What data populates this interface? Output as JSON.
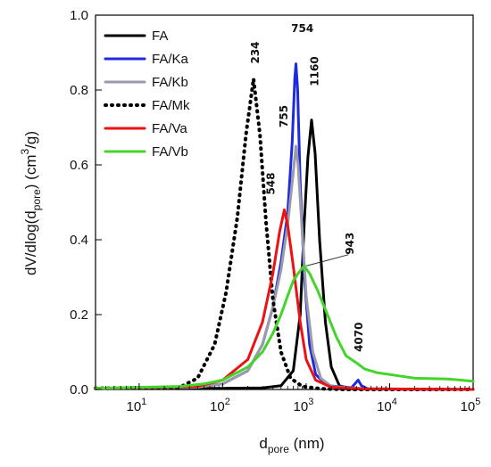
{
  "chart_data": {
    "type": "line",
    "x_scale": "log",
    "xlim": [
      3,
      100000
    ],
    "ylim": [
      0,
      1.0
    ],
    "grid": false,
    "legend_position": "top-left",
    "xlabel": {
      "main": "d",
      "sub": "pore",
      "rest": " (nm)"
    },
    "ylabel": {
      "p1": "dV/dlog(d",
      "sub": "pore",
      "p2": ") (cm",
      "sup": "3",
      "p3": "/g)"
    },
    "x_ticks": [
      {
        "value": 10,
        "base": "10",
        "exp": "1"
      },
      {
        "value": 100,
        "base": "10",
        "exp": "2"
      },
      {
        "value": 1000,
        "base": "10",
        "exp": "3"
      },
      {
        "value": 10000,
        "base": "10",
        "exp": "4"
      },
      {
        "value": 100000,
        "base": "10",
        "exp": "5"
      }
    ],
    "y_ticks": [
      {
        "value": 0,
        "label": "0.0"
      },
      {
        "value": 0.2,
        "label": "0.2"
      },
      {
        "value": 0.4,
        "label": "0.4"
      },
      {
        "value": 0.6,
        "label": "0.6"
      },
      {
        "value": 0.8,
        "label": "0.8"
      },
      {
        "value": 1.0,
        "label": "1.0"
      }
    ],
    "series": [
      {
        "name": "FA",
        "color": "#000000",
        "dash": "solid",
        "points": [
          [
            3,
            0.003
          ],
          [
            100,
            0.003
          ],
          [
            300,
            0.004
          ],
          [
            500,
            0.01
          ],
          [
            700,
            0.05
          ],
          [
            850,
            0.2
          ],
          [
            950,
            0.45
          ],
          [
            1050,
            0.62
          ],
          [
            1160,
            0.72
          ],
          [
            1280,
            0.63
          ],
          [
            1450,
            0.4
          ],
          [
            1700,
            0.18
          ],
          [
            2000,
            0.06
          ],
          [
            2500,
            0.01
          ],
          [
            3500,
            0.002
          ],
          [
            5000,
            0.001
          ],
          [
            100000,
            0.0
          ]
        ]
      },
      {
        "name": "FA/Ka",
        "color": "#1d2ae0",
        "dash": "solid",
        "points": [
          [
            3,
            0.003
          ],
          [
            50,
            0.006
          ],
          [
            100,
            0.015
          ],
          [
            200,
            0.05
          ],
          [
            300,
            0.12
          ],
          [
            400,
            0.22
          ],
          [
            500,
            0.34
          ],
          [
            600,
            0.47
          ],
          [
            680,
            0.66
          ],
          [
            730,
            0.83
          ],
          [
            754,
            0.87
          ],
          [
            790,
            0.8
          ],
          [
            850,
            0.55
          ],
          [
            950,
            0.3
          ],
          [
            1100,
            0.12
          ],
          [
            1300,
            0.04
          ],
          [
            1800,
            0.01
          ],
          [
            3500,
            0.005
          ],
          [
            4200,
            0.025
          ],
          [
            4600,
            0.01
          ],
          [
            5500,
            0.002
          ],
          [
            100000,
            0.0
          ]
        ]
      },
      {
        "name": "FA/Kb",
        "color": "#9a9aa8",
        "dash": "solid",
        "points": [
          [
            3,
            0.003
          ],
          [
            50,
            0.006
          ],
          [
            100,
            0.015
          ],
          [
            200,
            0.05
          ],
          [
            300,
            0.12
          ],
          [
            400,
            0.22
          ],
          [
            500,
            0.32
          ],
          [
            600,
            0.44
          ],
          [
            700,
            0.58
          ],
          [
            755,
            0.65
          ],
          [
            800,
            0.6
          ],
          [
            880,
            0.45
          ],
          [
            1000,
            0.25
          ],
          [
            1200,
            0.1
          ],
          [
            1500,
            0.03
          ],
          [
            2000,
            0.008
          ],
          [
            5000,
            0.002
          ],
          [
            100000,
            0.0
          ]
        ]
      },
      {
        "name": "FA/Mk",
        "color": "#000000",
        "dash": "dotted",
        "points": [
          [
            3,
            0.003
          ],
          [
            30,
            0.005
          ],
          [
            50,
            0.03
          ],
          [
            80,
            0.12
          ],
          [
            110,
            0.26
          ],
          [
            150,
            0.46
          ],
          [
            190,
            0.68
          ],
          [
            234,
            0.83
          ],
          [
            280,
            0.68
          ],
          [
            330,
            0.45
          ],
          [
            400,
            0.24
          ],
          [
            500,
            0.1
          ],
          [
            650,
            0.03
          ],
          [
            900,
            0.008
          ],
          [
            1500,
            0.002
          ],
          [
            3000,
            0.0
          ],
          [
            100000,
            0.0
          ]
        ]
      },
      {
        "name": "FA/Va",
        "color": "#ee1111",
        "dash": "solid",
        "points": [
          [
            3,
            0.003
          ],
          [
            50,
            0.008
          ],
          [
            100,
            0.025
          ],
          [
            200,
            0.08
          ],
          [
            300,
            0.18
          ],
          [
            400,
            0.31
          ],
          [
            480,
            0.42
          ],
          [
            548,
            0.48
          ],
          [
            600,
            0.44
          ],
          [
            700,
            0.33
          ],
          [
            850,
            0.18
          ],
          [
            1000,
            0.08
          ],
          [
            1300,
            0.025
          ],
          [
            2000,
            0.006
          ],
          [
            5000,
            0.002
          ],
          [
            100000,
            0.0
          ]
        ]
      },
      {
        "name": "FA/Vb",
        "color": "#44d52a",
        "dash": "solid",
        "points": [
          [
            3,
            0.003
          ],
          [
            30,
            0.008
          ],
          [
            60,
            0.015
          ],
          [
            100,
            0.025
          ],
          [
            200,
            0.06
          ],
          [
            300,
            0.1
          ],
          [
            400,
            0.15
          ],
          [
            500,
            0.2
          ],
          [
            600,
            0.25
          ],
          [
            700,
            0.29
          ],
          [
            800,
            0.31
          ],
          [
            943,
            0.33
          ],
          [
            1100,
            0.31
          ],
          [
            1400,
            0.26
          ],
          [
            1800,
            0.2
          ],
          [
            2300,
            0.14
          ],
          [
            3000,
            0.09
          ],
          [
            4070,
            0.07
          ],
          [
            5000,
            0.055
          ],
          [
            7000,
            0.045
          ],
          [
            10000,
            0.04
          ],
          [
            20000,
            0.03
          ],
          [
            50000,
            0.028
          ],
          [
            100000,
            0.022
          ]
        ]
      }
    ],
    "annotations": [
      {
        "label": "234",
        "x": 270,
        "y": 0.9,
        "rotate": true
      },
      {
        "label": "754",
        "x": 900,
        "y": 0.955,
        "rotate": false
      },
      {
        "label": "1160",
        "x": 1400,
        "y": 0.85,
        "rotate": true
      },
      {
        "label": "755",
        "x": 600,
        "y": 0.73,
        "rotate": true
      },
      {
        "label": "548",
        "x": 420,
        "y": 0.55,
        "rotate": true
      },
      {
        "label": "943",
        "x": 3700,
        "y": 0.39,
        "rotate": true,
        "leader": {
          "x1": 1000,
          "y1": 0.33,
          "x2": 3200,
          "y2": 0.36
        }
      },
      {
        "label": "4070",
        "x": 4700,
        "y": 0.14,
        "rotate": true
      }
    ]
  }
}
